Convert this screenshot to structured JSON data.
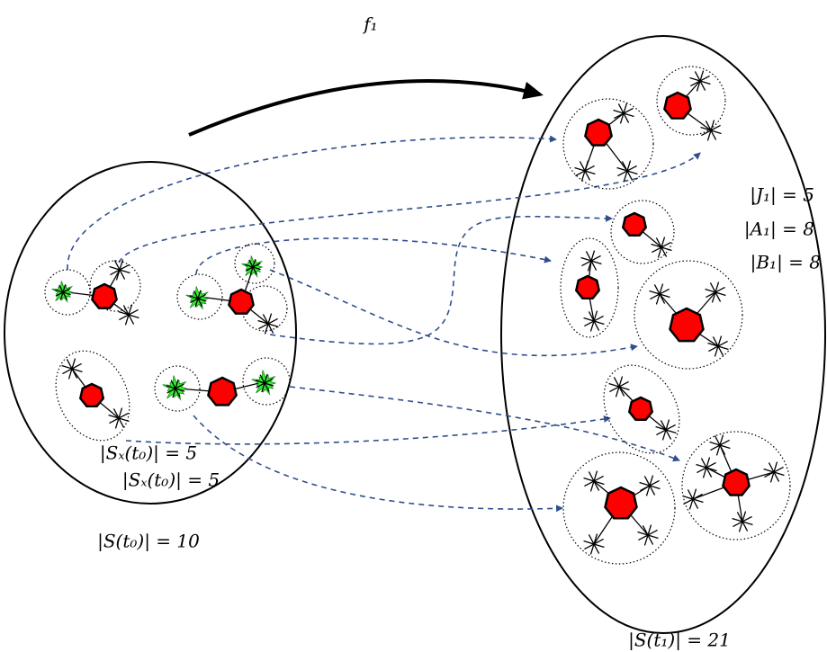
{
  "labels": {
    "map": "f₁",
    "j1": "|J₁| = 5",
    "a1": "|A₁| = 8",
    "b1": "|B₁| = 8",
    "sx_first": "|Sₓ(t₀)| = 5",
    "sx_second": "|Sₓ(t₀)| = 5",
    "s_t0": "|S(t₀)| = 10",
    "s_t1": "|S(t₁)| = 21"
  }
}
